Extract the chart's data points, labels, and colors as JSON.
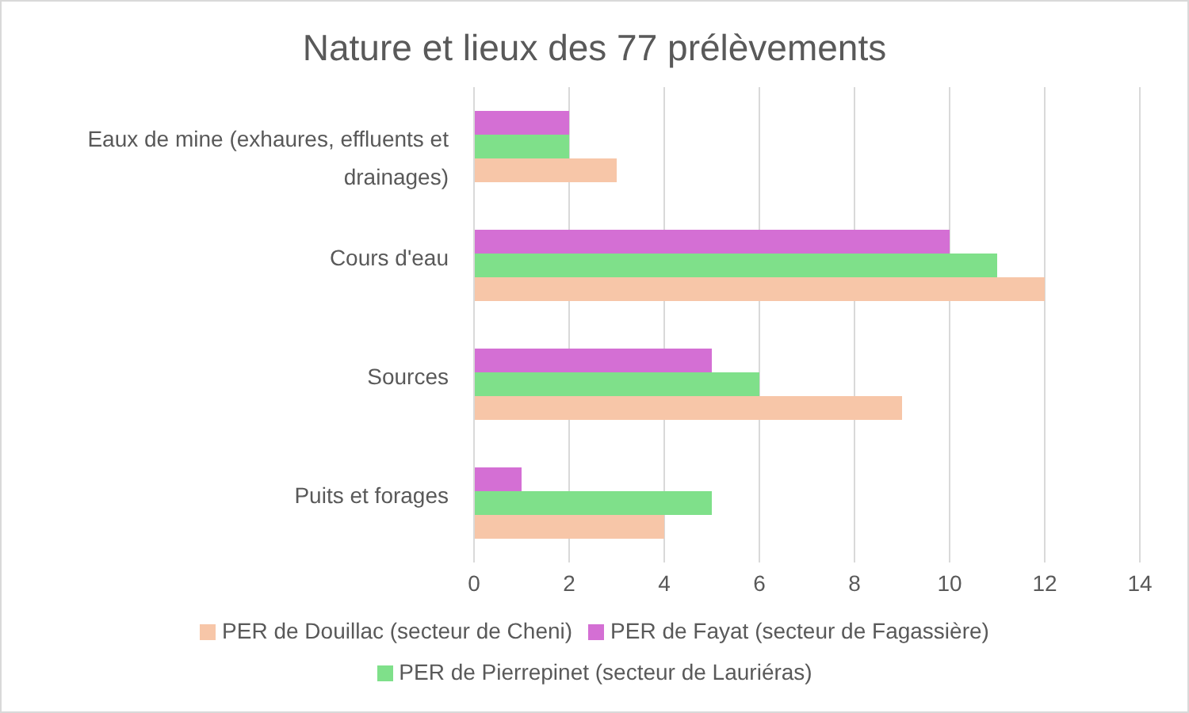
{
  "chart_data": {
    "type": "bar",
    "orientation": "horizontal",
    "title": "Nature et lieux des 77 prélèvements",
    "categories": [
      "Eaux de mine (exhaures, effluents et drainages)",
      "Cours d'eau",
      "Sources",
      "Puits et forages"
    ],
    "series": [
      {
        "name": "PER de Fayat (secteur de Fagassière)",
        "color": "#d46fd4",
        "values": [
          2,
          10,
          5,
          1
        ]
      },
      {
        "name": "PER de Pierrepinet (secteur de Lauriéras)",
        "color": "#7fe08a",
        "values": [
          2,
          11,
          6,
          5
        ]
      },
      {
        "name": "PER de Douillac (secteur de Cheni)",
        "color": "#f7c6a8",
        "values": [
          3,
          12,
          9,
          4
        ]
      }
    ],
    "xlim": [
      0,
      14
    ],
    "xticks": [
      0,
      2,
      4,
      6,
      8,
      10,
      12,
      14
    ],
    "grid": "x",
    "legend": "bottom"
  }
}
